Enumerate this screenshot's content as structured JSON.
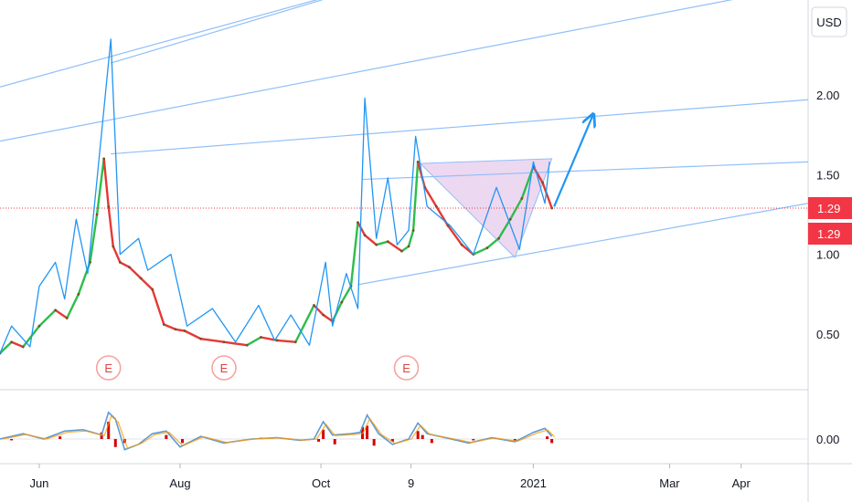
{
  "currency_button": {
    "label": "USD"
  },
  "price_tags": [
    {
      "label": "1.29",
      "color": "#f23645"
    },
    {
      "label": "1.29",
      "color": "#f23645"
    }
  ],
  "earnings_markers": [
    {
      "label": "E",
      "date": "2020-07-01"
    },
    {
      "label": "E",
      "date": "2020-08-20"
    },
    {
      "label": "E",
      "date": "2020-11-07"
    }
  ],
  "colors": {
    "up": "#26a69a",
    "down": "#e53935",
    "trend_line": "#2196f3",
    "channel_line": "#90bff9",
    "pattern_fill": "#e1bee7",
    "price_line": "#f23645",
    "histogram": "#d50000",
    "signal": "#ff9800"
  },
  "chart_data": [
    {
      "type": "line",
      "panel": "price",
      "currency": "USD",
      "yticks": [
        0.5,
        1.0,
        1.5,
        2.0
      ],
      "ytick_labels": [
        "0.50",
        "1.00",
        "1.50",
        "2.00"
      ],
      "ylim": [
        0.3,
        2.5
      ],
      "xtick_labels": [
        {
          "label": "Jun",
          "date": "2020-06-01"
        },
        {
          "label": "Aug",
          "date": "2020-08-01"
        },
        {
          "label": "Oct",
          "date": "2020-10-01"
        },
        {
          "label": "9",
          "date": "2020-11-09"
        },
        {
          "label": "2021",
          "date": "2021-01-01"
        },
        {
          "label": "Mar",
          "date": "2021-03-01"
        },
        {
          "label": "Apr",
          "date": "2021-04-01"
        }
      ],
      "xlim": [
        "2020-05-15",
        "2021-04-30"
      ],
      "last_price": 1.29,
      "close_series": {
        "dates": [
          "2020-05-15",
          "2020-05-20",
          "2020-05-25",
          "2020-06-01",
          "2020-06-08",
          "2020-06-13",
          "2020-06-18",
          "2020-06-23",
          "2020-06-26",
          "2020-06-29",
          "2020-07-01",
          "2020-07-03",
          "2020-07-06",
          "2020-07-10",
          "2020-07-15",
          "2020-07-20",
          "2020-07-25",
          "2020-07-30",
          "2020-08-03",
          "2020-08-10",
          "2020-08-20",
          "2020-08-30",
          "2020-09-05",
          "2020-09-12",
          "2020-09-20",
          "2020-09-28",
          "2020-10-02",
          "2020-10-06",
          "2020-10-10",
          "2020-10-14",
          "2020-10-17",
          "2020-10-20",
          "2020-10-25",
          "2020-10-30",
          "2020-11-05",
          "2020-11-08",
          "2020-11-10",
          "2020-11-12",
          "2020-11-15",
          "2020-11-20",
          "2020-11-25",
          "2020-12-01",
          "2020-12-06",
          "2020-12-12",
          "2020-12-17",
          "2020-12-22",
          "2020-12-27",
          "2021-01-01",
          "2021-01-05",
          "2021-01-09"
        ],
        "values": [
          0.38,
          0.45,
          0.42,
          0.55,
          0.65,
          0.6,
          0.75,
          0.95,
          1.25,
          1.6,
          1.3,
          1.05,
          0.95,
          0.92,
          0.85,
          0.78,
          0.56,
          0.53,
          0.52,
          0.47,
          0.45,
          0.43,
          0.48,
          0.46,
          0.45,
          0.68,
          0.62,
          0.58,
          0.7,
          0.8,
          1.2,
          1.12,
          1.06,
          1.08,
          1.02,
          1.05,
          1.15,
          1.58,
          1.42,
          1.3,
          1.18,
          1.06,
          1.0,
          1.04,
          1.1,
          1.22,
          1.35,
          1.55,
          1.45,
          1.29
        ]
      },
      "trend_zigzag": {
        "dates": [
          "2020-05-15",
          "2020-05-20",
          "2020-05-28",
          "2020-06-01",
          "2020-06-08",
          "2020-06-12",
          "2020-06-17",
          "2020-06-22",
          "2020-07-02",
          "2020-07-06",
          "2020-07-14",
          "2020-07-18",
          "2020-07-28",
          "2020-08-04",
          "2020-08-15",
          "2020-08-25",
          "2020-09-04",
          "2020-09-11",
          "2020-09-18",
          "2020-09-26",
          "2020-10-03",
          "2020-10-06",
          "2020-10-12",
          "2020-10-17",
          "2020-10-20",
          "2020-10-25",
          "2020-10-30",
          "2020-11-03",
          "2020-11-08",
          "2020-11-11",
          "2020-11-16",
          "2020-11-26",
          "2020-12-06",
          "2020-12-16",
          "2020-12-26",
          "2021-01-01",
          "2021-01-06",
          "2021-01-08"
        ],
        "values": [
          0.38,
          0.55,
          0.42,
          0.8,
          0.95,
          0.72,
          1.22,
          0.88,
          2.35,
          1.0,
          1.1,
          0.9,
          1.0,
          0.55,
          0.66,
          0.45,
          0.68,
          0.46,
          0.62,
          0.43,
          0.95,
          0.55,
          0.88,
          0.66,
          1.98,
          1.1,
          1.48,
          1.06,
          1.15,
          1.74,
          1.3,
          1.18,
          1.0,
          1.42,
          1.03,
          1.58,
          1.32,
          1.58
        ]
      },
      "channel_lines": [
        {
          "from": [
            "2020-05-15",
            2.05
          ],
          "to": [
            "2020-10-20",
            2.68
          ]
        },
        {
          "from": [
            "2020-07-02",
            2.2
          ],
          "to": [
            "2020-10-30",
            2.72
          ]
        },
        {
          "from": [
            "2020-05-15",
            1.71
          ],
          "to": [
            "2021-04-30",
            2.69
          ]
        },
        {
          "from": [
            "2020-07-02",
            1.63
          ],
          "to": [
            "2021-04-30",
            1.97
          ]
        },
        {
          "from": [
            "2020-10-19",
            1.47
          ],
          "to": [
            "2021-04-30",
            1.58
          ]
        },
        {
          "from": [
            "2020-10-17",
            0.81
          ],
          "to": [
            "2021-04-30",
            1.32
          ]
        }
      ],
      "pattern_triangle": [
        [
          "2020-11-13",
          1.57
        ],
        [
          "2021-01-09",
          1.6
        ],
        [
          "2020-12-24",
          0.98
        ]
      ],
      "projection_arrow": {
        "from": [
          "2021-01-10",
          1.3
        ],
        "to": [
          "2021-01-27",
          1.88
        ]
      }
    },
    {
      "type": "bar",
      "panel": "indicator",
      "yticks": [
        0.0
      ],
      "ytick_labels": [
        "0.00"
      ],
      "ylim": [
        -0.25,
        0.25
      ],
      "indicator_line": {
        "dates": [
          "2020-05-15",
          "2020-05-25",
          "2020-06-03",
          "2020-06-12",
          "2020-06-20",
          "2020-06-28",
          "2020-07-01",
          "2020-07-04",
          "2020-07-08",
          "2020-07-14",
          "2020-07-20",
          "2020-07-26",
          "2020-08-01",
          "2020-08-10",
          "2020-08-20",
          "2020-09-01",
          "2020-09-12",
          "2020-09-22",
          "2020-09-28",
          "2020-10-02",
          "2020-10-06",
          "2020-10-14",
          "2020-10-18",
          "2020-10-21",
          "2020-10-26",
          "2020-11-01",
          "2020-11-08",
          "2020-11-12",
          "2020-11-16",
          "2020-11-24",
          "2020-12-04",
          "2020-12-14",
          "2020-12-24",
          "2021-01-01",
          "2021-01-06",
          "2021-01-09"
        ],
        "values": [
          0.0,
          0.04,
          0.0,
          0.06,
          0.07,
          0.03,
          0.2,
          0.15,
          -0.08,
          -0.04,
          0.04,
          0.06,
          -0.06,
          0.02,
          -0.03,
          0.0,
          0.01,
          -0.01,
          0.0,
          0.13,
          0.03,
          0.04,
          0.05,
          0.18,
          0.04,
          -0.04,
          0.0,
          0.12,
          0.04,
          0.01,
          -0.03,
          0.01,
          -0.02,
          0.05,
          0.08,
          0.02
        ]
      },
      "histogram": {
        "dates": [
          "2020-05-20",
          "2020-06-10",
          "2020-06-28",
          "2020-07-01",
          "2020-07-04",
          "2020-07-08",
          "2020-07-26",
          "2020-08-02",
          "2020-09-05",
          "2020-09-30",
          "2020-10-02",
          "2020-10-07",
          "2020-10-19",
          "2020-10-21",
          "2020-10-24",
          "2020-11-01",
          "2020-11-12",
          "2020-11-14",
          "2020-11-18",
          "2020-12-06",
          "2020-12-24",
          "2021-01-07",
          "2021-01-09"
        ],
        "values": [
          -0.01,
          0.02,
          0.05,
          0.13,
          -0.06,
          -0.03,
          0.03,
          -0.03,
          0.01,
          -0.02,
          0.07,
          -0.04,
          0.09,
          0.1,
          -0.05,
          -0.02,
          0.06,
          0.03,
          -0.03,
          -0.01,
          -0.01,
          0.02,
          -0.03
        ]
      }
    }
  ]
}
